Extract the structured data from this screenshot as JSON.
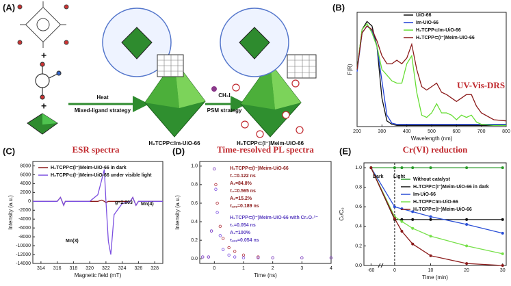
{
  "panel_a": {
    "label": "(A)",
    "arrow_1": {
      "above": "Heat",
      "below": "Mixed-ligand strategy"
    },
    "product_1": "H₂TCPP⊂Im-UiO-66",
    "arrow_2": {
      "above": "CH₃I",
      "below": "PSM strategy"
    },
    "product_2": "H₂TCPP⊂(I⁻)Meim-UiO-66"
  },
  "chart_data": [
    {
      "type": "line",
      "label": "(B)",
      "xlabel": "Wavelength (nm)",
      "ylabel": "F(R)",
      "x": [
        200,
        220,
        240,
        260,
        280,
        300,
        320,
        340,
        360,
        380,
        400,
        420,
        440,
        460,
        480,
        500,
        520,
        540,
        560,
        580,
        600,
        620,
        640,
        660,
        680,
        700,
        750,
        800
      ],
      "xlim": [
        200,
        800
      ],
      "xticks": [
        200,
        300,
        400,
        500,
        600,
        700,
        800
      ],
      "ylim": [
        0,
        1
      ],
      "series": [
        {
          "name": "UiO-66",
          "color": "#111111",
          "values": [
            0.5,
            0.85,
            0.92,
            0.88,
            0.7,
            0.25,
            0.05,
            0.02,
            0.01,
            0.01,
            0.01,
            0.01,
            0.01,
            0.01,
            0.01,
            0.01,
            0.01,
            0.01,
            0.01,
            0.01,
            0.01,
            0.01,
            0.01,
            0.01,
            0.01,
            0.01,
            0.01,
            0.01
          ]
        },
        {
          "name": "Im-UiO-66",
          "color": "#1f3fd6",
          "values": [
            0.48,
            0.82,
            0.88,
            0.84,
            0.7,
            0.4,
            0.1,
            0.03,
            0.02,
            0.02,
            0.02,
            0.02,
            0.02,
            0.02,
            0.02,
            0.02,
            0.02,
            0.02,
            0.02,
            0.02,
            0.02,
            0.02,
            0.02,
            0.02,
            0.02,
            0.02,
            0.02,
            0.02
          ]
        },
        {
          "name": "H₂TCPP⊂Im-UiO-66",
          "color": "#66dd33",
          "values": [
            0.5,
            0.85,
            0.9,
            0.82,
            0.7,
            0.5,
            0.45,
            0.4,
            0.38,
            0.38,
            0.55,
            0.62,
            0.3,
            0.1,
            0.08,
            0.12,
            0.2,
            0.12,
            0.12,
            0.1,
            0.06,
            0.1,
            0.08,
            0.1,
            0.04,
            0.02,
            0.01,
            0.01
          ]
        },
        {
          "name": "H₂TCPP⊂(I⁻)Meim-UiO-66",
          "color": "#8b1a1a",
          "values": [
            0.5,
            0.82,
            0.88,
            0.85,
            0.75,
            0.62,
            0.55,
            0.55,
            0.58,
            0.55,
            0.6,
            0.72,
            0.5,
            0.35,
            0.32,
            0.35,
            0.38,
            0.3,
            0.28,
            0.25,
            0.22,
            0.25,
            0.28,
            0.28,
            0.18,
            0.12,
            0.06,
            0.05
          ]
        }
      ],
      "annotations": [
        "UV-Vis-DRS"
      ]
    },
    {
      "type": "line",
      "label": "(C)",
      "title": "ESR spectra",
      "xlabel": "Magnetic field (mT)",
      "ylabel": "Intensity (a.u.)",
      "x": [
        313,
        316,
        316.4,
        316.6,
        316.8,
        317,
        320,
        321,
        321.5,
        321.8,
        322,
        322.3,
        322.6,
        323,
        324,
        325,
        325.3,
        325.5,
        325.7,
        326,
        329
      ],
      "xlim": [
        313,
        329
      ],
      "xticks": [
        314,
        316,
        318,
        320,
        322,
        324,
        326,
        328
      ],
      "ylim": [
        -14000,
        9000
      ],
      "yticks": [
        8000,
        6000,
        4000,
        2000,
        0,
        -2000,
        -4000,
        -6000,
        -8000,
        -10000,
        -12000,
        -14000
      ],
      "series": [
        {
          "name": "H₂TCPP⊂(I⁻)Meim-UiO-66 in dark",
          "color": "#8b1a1a",
          "values": [
            0,
            0,
            900,
            0,
            -900,
            0,
            0,
            0,
            300,
            0,
            -300,
            0,
            0,
            0,
            0,
            0,
            900,
            0,
            -900,
            0,
            0
          ]
        },
        {
          "name": "H₂TCPP⊂(I⁻)Meim-UiO-66 under visible light",
          "color": "#7b4fe0",
          "values": [
            0,
            0,
            900,
            0,
            -900,
            0,
            0,
            1500,
            5000,
            7200,
            0,
            -9000,
            -12000,
            -3000,
            -500,
            0,
            900,
            0,
            -900,
            0,
            0
          ]
        }
      ],
      "legend": true,
      "annotations": [
        "Mn(3)",
        "g=2.003",
        "Mn(4)"
      ]
    },
    {
      "type": "scatter",
      "label": "(D)",
      "title": "Time-resolved PL spectra",
      "xlabel": "Time (ns)",
      "ylabel": "Intensity (a.u.)",
      "x": [
        -0.4,
        -0.2,
        -0.1,
        0,
        0.05,
        0.1,
        0.2,
        0.3,
        0.5,
        0.7,
        1,
        1.5,
        2,
        3,
        4
      ],
      "xlim": [
        -0.5,
        4
      ],
      "xticks": [
        0,
        1,
        2,
        3,
        4
      ],
      "ylim": [
        -0.05,
        1.05
      ],
      "yticks": [
        {
          "value": 0,
          "label": "0.0"
        },
        0.2,
        0.4,
        0.6,
        0.8,
        {
          "value": 1,
          "label": "1.0"
        }
      ],
      "series": [
        {
          "color": "#b0303a",
          "values": [
            0.02,
            0.02,
            0.3,
            0.97,
            0.8,
            0.6,
            0.35,
            0.22,
            0.12,
            0.08,
            0.04,
            0.02,
            0.01,
            0.01,
            0.01
          ]
        },
        {
          "color": "#7b4fe0",
          "values": [
            0.02,
            0.02,
            0.3,
            0.97,
            0.75,
            0.5,
            0.25,
            0.1,
            0.04,
            0.02,
            0.01,
            0.01,
            0.01,
            0.01,
            0.01
          ]
        }
      ],
      "annotations": [
        "H₂TCPP⊂(I⁻)Meim-UiO-66",
        "τ₁=0.122 ns",
        "A₁=84.8%",
        "τ₂=0.565 ns",
        "A₂=15.2%",
        "τₐᵥₑ=0.189 ns",
        "H₂TCPP⊂(I⁻)Meim-UiO-66 with Cr₂O₇²⁻",
        "τ₁=0.054 ns",
        "A₁=100%",
        "τₐᵥₑ=0.054 ns"
      ]
    },
    {
      "type": "line",
      "label": "(E)",
      "title": "Cr(VI) reduction",
      "xlabel": "Time (min)",
      "ylabel": "Cₜ/C₀",
      "x": [
        -60,
        0,
        2,
        5,
        10,
        20,
        30
      ],
      "x_break": true,
      "markers": true,
      "xlim": [
        -65,
        31
      ],
      "xticks": [
        -60,
        0,
        10,
        20,
        30
      ],
      "ylim": [
        0,
        1.05
      ],
      "yticks": [
        {
          "value": 0,
          "label": "0.0"
        },
        0.2,
        0.4,
        0.6,
        0.8,
        {
          "value": 1,
          "label": "1.0"
        }
      ],
      "series": [
        {
          "name": "Without catalyst",
          "color": "#2a9a2a",
          "values": [
            1,
            1,
            1,
            1,
            1,
            1,
            1
          ]
        },
        {
          "name": "H₂TCPP⊂(I⁻)Meim-UiO-66 in dark",
          "color": "#111111",
          "values": [
            1,
            0.47,
            0.47,
            0.47,
            0.47,
            0.47,
            0.47
          ]
        },
        {
          "name": "Im-UiO-66",
          "color": "#2a4fd6",
          "values": [
            1,
            0.6,
            0.58,
            0.55,
            0.5,
            0.42,
            0.33
          ]
        },
        {
          "name": "H₂TCPP⊂Im-UiO-66",
          "color": "#77e04a",
          "values": [
            1,
            0.5,
            0.45,
            0.38,
            0.3,
            0.2,
            0.12
          ]
        },
        {
          "name": "H₂TCPP⊂(I⁻)Meim-UiO-66",
          "color": "#8b1a1a",
          "values": [
            1,
            0.48,
            0.35,
            0.22,
            0.1,
            0.02,
            0
          ]
        }
      ],
      "legend": true,
      "annotations": [
        "Dark",
        "Light"
      ]
    }
  ]
}
